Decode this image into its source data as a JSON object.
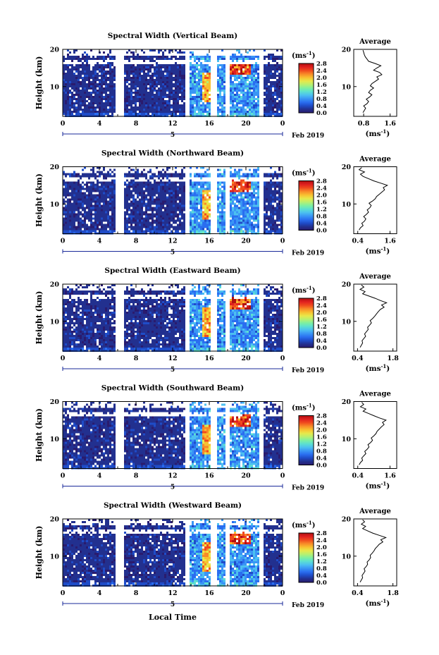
{
  "figure": {
    "xlabel": "Local Time",
    "ylabel": "Height (km)",
    "date_label": "Feb 2019",
    "day_marker": "5",
    "unit_label": "(ms",
    "unit_exp": "-1",
    "unit_close": ")",
    "average_title": "Average",
    "average_xlabel": "(ms",
    "colorbar_colors": [
      "#2a1b6e",
      "#22308f",
      "#1f4cc8",
      "#2a6ef0",
      "#3a96f5",
      "#4cc0f0",
      "#5ce0d0",
      "#7ef0a0",
      "#b8f070",
      "#e8e84a",
      "#f8c030",
      "#f88a28",
      "#f04a1e",
      "#e02020",
      "#b01010"
    ]
  },
  "chart_data": [
    {
      "type": "heatmap",
      "title": "Spectral Width (Vertical Beam)",
      "x_ticks": [
        "0",
        "4",
        "8",
        "12",
        "16",
        "20",
        "0"
      ],
      "y_ticks": [
        "20",
        "10"
      ],
      "xlim": [
        0,
        24
      ],
      "ylim": [
        2,
        20
      ],
      "colorbar_ticks": [
        "2.8",
        "2.4",
        "2.0",
        "1.6",
        "1.2",
        "0.8",
        "0.4",
        "0.0"
      ],
      "colorbar_range": [
        0.0,
        2.8
      ],
      "average": {
        "type": "line",
        "x_ticks": [
          "0.8",
          "1.6"
        ],
        "y_ticks": [
          "20",
          "10"
        ],
        "xlim": [
          0.5,
          1.8
        ],
        "ylim": [
          2,
          20
        ],
        "x": [
          0.78,
          0.82,
          0.86,
          0.8,
          0.9,
          0.95,
          0.88,
          0.98,
          1.05,
          0.95,
          1.0,
          1.1,
          1.0,
          1.05,
          1.15,
          1.25,
          1.2,
          1.35,
          1.28,
          1.1,
          1.2,
          1.32,
          1.15,
          0.95,
          0.9,
          0.85,
          0.82,
          0.8,
          0.78
        ],
        "y": [
          3,
          3.6,
          4.2,
          4.8,
          5.4,
          6,
          6.6,
          7.2,
          7.8,
          8.4,
          9,
          9.6,
          10.2,
          10.8,
          11.4,
          12,
          12.6,
          13.2,
          13.8,
          14.4,
          15,
          15.6,
          16.2,
          16.8,
          17.4,
          18,
          18.6,
          19.2,
          19.8
        ]
      }
    },
    {
      "type": "heatmap",
      "title": "Spectral Width (Northward Beam)",
      "x_ticks": [
        "0",
        "4",
        "8",
        "12",
        "16",
        "20",
        "0"
      ],
      "y_ticks": [
        "20",
        "10"
      ],
      "xlim": [
        0,
        24
      ],
      "ylim": [
        2,
        20
      ],
      "colorbar_ticks": [
        "2.8",
        "2.4",
        "2.0",
        "1.6",
        "1.2",
        "0.8",
        "0.4",
        "0.0"
      ],
      "colorbar_range": [
        0.0,
        2.8
      ],
      "average": {
        "type": "line",
        "x_ticks": [
          "0.4",
          "1.6"
        ],
        "y_ticks": [
          "20",
          "10"
        ],
        "xlim": [
          0.25,
          1.85
        ],
        "ylim": [
          2,
          20
        ],
        "x": [
          0.45,
          0.5,
          0.6,
          0.55,
          0.65,
          0.7,
          0.62,
          0.72,
          0.8,
          0.75,
          0.85,
          0.9,
          0.82,
          0.95,
          1.05,
          1.1,
          1.2,
          1.3,
          1.4,
          1.35,
          1.5,
          1.25,
          1.0,
          0.8,
          0.6,
          0.5,
          0.65,
          0.45,
          0.55
        ],
        "y": [
          3,
          3.6,
          4.2,
          4.8,
          5.4,
          6,
          6.6,
          7.2,
          7.8,
          8.4,
          9,
          9.6,
          10.2,
          10.8,
          11.4,
          12,
          12.6,
          13.2,
          13.8,
          14.4,
          15,
          15.6,
          16.2,
          16.8,
          17.4,
          18,
          18.6,
          19.2,
          19.8
        ]
      }
    },
    {
      "type": "heatmap",
      "title": "Spectral Width (Eastward Beam)",
      "x_ticks": [
        "0",
        "4",
        "8",
        "12",
        "16",
        "20",
        "0"
      ],
      "y_ticks": [
        "20",
        "10"
      ],
      "xlim": [
        0,
        24
      ],
      "ylim": [
        2,
        20
      ],
      "colorbar_ticks": [
        "2.8",
        "2.4",
        "2.0",
        "1.6",
        "1.2",
        "0.8",
        "0.4",
        "0.0"
      ],
      "colorbar_range": [
        0.0,
        2.8
      ],
      "average": {
        "type": "line",
        "x_ticks": [
          "0.4",
          "1.8"
        ],
        "y_ticks": [
          "20",
          "10"
        ],
        "xlim": [
          0.25,
          1.95
        ],
        "ylim": [
          2,
          20
        ],
        "x": [
          0.5,
          0.55,
          0.6,
          0.58,
          0.65,
          0.72,
          0.68,
          0.75,
          0.82,
          0.8,
          0.88,
          0.95,
          0.9,
          1.0,
          1.08,
          1.15,
          1.22,
          1.3,
          1.45,
          1.35,
          1.55,
          1.3,
          1.1,
          0.85,
          0.6,
          0.7,
          0.5,
          0.65,
          0.55
        ],
        "y": [
          3,
          3.6,
          4.2,
          4.8,
          5.4,
          6,
          6.6,
          7.2,
          7.8,
          8.4,
          9,
          9.6,
          10.2,
          10.8,
          11.4,
          12,
          12.6,
          13.2,
          13.8,
          14.4,
          15,
          15.6,
          16.2,
          16.8,
          17.4,
          18,
          18.6,
          19.2,
          19.8
        ]
      }
    },
    {
      "type": "heatmap",
      "title": "Spectral Width (Southward Beam)",
      "x_ticks": [
        "0",
        "4",
        "8",
        "12",
        "16",
        "20",
        "0"
      ],
      "y_ticks": [
        "20",
        "10"
      ],
      "xlim": [
        0,
        24
      ],
      "ylim": [
        2,
        20
      ],
      "colorbar_ticks": [
        "2.8",
        "2.4",
        "2.0",
        "1.6",
        "1.2",
        "0.8",
        "0.4",
        "0.0"
      ],
      "colorbar_range": [
        0.0,
        2.8
      ],
      "average": {
        "type": "line",
        "x_ticks": [
          "0.4",
          "1.6"
        ],
        "y_ticks": [
          "20",
          "10"
        ],
        "xlim": [
          0.25,
          1.85
        ],
        "ylim": [
          2,
          20
        ],
        "x": [
          0.45,
          0.5,
          0.58,
          0.55,
          0.62,
          0.7,
          0.66,
          0.75,
          0.82,
          0.78,
          0.88,
          0.95,
          0.9,
          1.0,
          1.08,
          1.12,
          1.2,
          1.28,
          1.38,
          1.32,
          1.45,
          1.2,
          1.0,
          0.8,
          0.6,
          0.7,
          0.5,
          0.62,
          0.55
        ],
        "y": [
          3,
          3.6,
          4.2,
          4.8,
          5.4,
          6,
          6.6,
          7.2,
          7.8,
          8.4,
          9,
          9.6,
          10.2,
          10.8,
          11.4,
          12,
          12.6,
          13.2,
          13.8,
          14.4,
          15,
          15.6,
          16.2,
          16.8,
          17.4,
          18,
          18.6,
          19.2,
          19.8
        ]
      }
    },
    {
      "type": "heatmap",
      "title": "Spectral Width (Westward Beam)",
      "x_ticks": [
        "0",
        "4",
        "8",
        "12",
        "16",
        "20",
        "0"
      ],
      "y_ticks": [
        "20",
        "10"
      ],
      "xlim": [
        0,
        24
      ],
      "ylim": [
        2,
        20
      ],
      "colorbar_ticks": [
        "2.8",
        "2.4",
        "2.0",
        "1.6",
        "1.2",
        "0.8",
        "0.4",
        "0.0"
      ],
      "colorbar_range": [
        0.0,
        2.8
      ],
      "average": {
        "type": "line",
        "x_ticks": [
          "0.4",
          "1.8"
        ],
        "y_ticks": [
          "20",
          "10"
        ],
        "xlim": [
          0.25,
          1.95
        ],
        "ylim": [
          2,
          20
        ],
        "x": [
          0.5,
          0.55,
          0.6,
          0.58,
          0.64,
          0.7,
          0.66,
          0.74,
          0.8,
          0.78,
          0.86,
          0.92,
          0.9,
          0.98,
          1.05,
          1.1,
          1.18,
          1.26,
          1.4,
          1.32,
          1.52,
          1.25,
          1.0,
          0.8,
          0.6,
          0.72,
          0.55,
          0.68,
          0.6
        ],
        "y": [
          3,
          3.6,
          4.2,
          4.8,
          5.4,
          6,
          6.6,
          7.2,
          7.8,
          8.4,
          9,
          9.6,
          10.2,
          10.8,
          11.4,
          12,
          12.6,
          13.2,
          13.8,
          14.4,
          15,
          15.6,
          16.2,
          16.8,
          17.4,
          18,
          18.6,
          19.2,
          19.8
        ]
      }
    }
  ]
}
